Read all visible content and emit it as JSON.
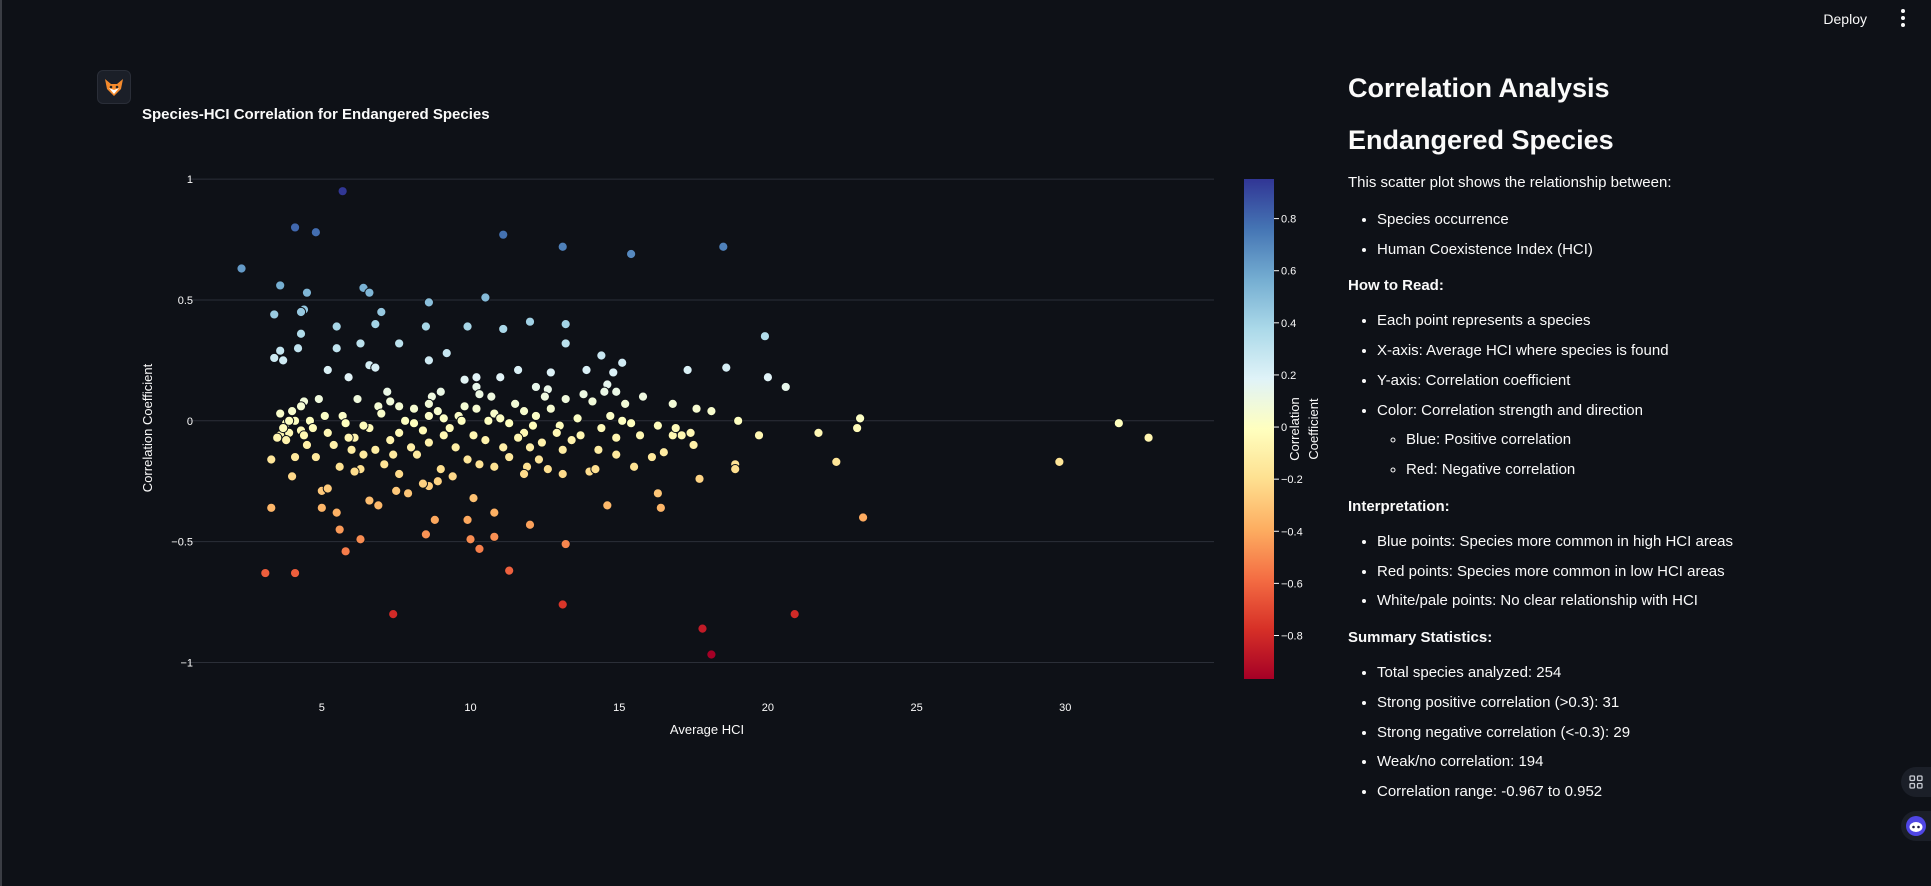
{
  "header": {
    "deploy_label": "Deploy",
    "menu_icon": "more-vertical-icon"
  },
  "chart_header": {
    "avatar_icon": "fox-icon",
    "title": "Species-HCI Correlation for Endangered Species"
  },
  "colors": {
    "background": "#0e1117",
    "grid": "#2b2f38",
    "text": "#fafafa"
  },
  "chart_data": {
    "type": "scatter",
    "title": "Species-HCI Correlation for Endangered Species",
    "xlabel": "Average HCI",
    "ylabel": "Correlation Coefficient",
    "xlim": [
      0.5,
      35
    ],
    "ylim": [
      -1.06,
      1.05
    ],
    "x_ticks": [
      5,
      10,
      15,
      20,
      25,
      30
    ],
    "y_ticks": [
      1,
      0.5,
      0,
      -0.5,
      -1
    ],
    "y_tick_labels": [
      "1",
      "0.5",
      "0",
      "−0.5",
      "−1"
    ],
    "grid": "horizontal",
    "colorbar": {
      "title": "Correlation Coefficient",
      "range": [
        -0.967,
        0.952
      ],
      "ticks": [
        0.8,
        0.6,
        0.4,
        0.2,
        0,
        -0.2,
        -0.4,
        -0.6,
        -0.8
      ],
      "tick_labels": [
        "0.8",
        "0.6",
        "0.4",
        "0.2",
        "0",
        "−0.2",
        "−0.4",
        "−0.6",
        "−0.8"
      ],
      "colorscale": "RdYlBu"
    },
    "points": [
      [
        5.7,
        0.95
      ],
      [
        4.1,
        0.8
      ],
      [
        4.8,
        0.78
      ],
      [
        11.1,
        0.77
      ],
      [
        13.1,
        0.72
      ],
      [
        18.5,
        0.72
      ],
      [
        15.4,
        0.69
      ],
      [
        2.3,
        0.63
      ],
      [
        3.6,
        0.56
      ],
      [
        6.4,
        0.55
      ],
      [
        6.6,
        0.53
      ],
      [
        4.5,
        0.53
      ],
      [
        10.5,
        0.51
      ],
      [
        8.6,
        0.49
      ],
      [
        4.4,
        0.46
      ],
      [
        3.4,
        0.44
      ],
      [
        7.0,
        0.45
      ],
      [
        4.3,
        0.45
      ],
      [
        12.0,
        0.41
      ],
      [
        13.2,
        0.4
      ],
      [
        6.8,
        0.4
      ],
      [
        9.9,
        0.39
      ],
      [
        5.5,
        0.39
      ],
      [
        8.5,
        0.39
      ],
      [
        11.1,
        0.38
      ],
      [
        4.3,
        0.36
      ],
      [
        19.9,
        0.35
      ],
      [
        6.3,
        0.32
      ],
      [
        13.2,
        0.32
      ],
      [
        7.6,
        0.32
      ],
      [
        3.6,
        0.29
      ],
      [
        5.5,
        0.3
      ],
      [
        4.2,
        0.3
      ],
      [
        9.2,
        0.28
      ],
      [
        3.4,
        0.26
      ],
      [
        8.6,
        0.25
      ],
      [
        14.4,
        0.27
      ],
      [
        15.1,
        0.24
      ],
      [
        3.7,
        0.25
      ],
      [
        5.2,
        0.21
      ],
      [
        6.6,
        0.23
      ],
      [
        6.8,
        0.22
      ],
      [
        12.7,
        0.2
      ],
      [
        11.6,
        0.21
      ],
      [
        17.3,
        0.21
      ],
      [
        18.6,
        0.22
      ],
      [
        10.2,
        0.18
      ],
      [
        14.8,
        0.2
      ],
      [
        20.0,
        0.18
      ],
      [
        9.8,
        0.17
      ],
      [
        13.9,
        0.21
      ],
      [
        12.2,
        0.14
      ],
      [
        5.9,
        0.18
      ],
      [
        11.0,
        0.18
      ],
      [
        14.6,
        0.15
      ],
      [
        10.2,
        0.14
      ],
      [
        20.6,
        0.14
      ],
      [
        7.2,
        0.12
      ],
      [
        9.0,
        0.12
      ],
      [
        10.7,
        0.1
      ],
      [
        12.6,
        0.13
      ],
      [
        8.7,
        0.1
      ],
      [
        4.9,
        0.09
      ],
      [
        14.9,
        0.12
      ],
      [
        6.2,
        0.09
      ],
      [
        14.5,
        0.12
      ],
      [
        10.3,
        0.11
      ],
      [
        12.5,
        0.1
      ],
      [
        13.8,
        0.11
      ],
      [
        7.3,
        0.08
      ],
      [
        8.6,
        0.07
      ],
      [
        11.5,
        0.07
      ],
      [
        15.8,
        0.1
      ],
      [
        4.4,
        0.08
      ],
      [
        4.3,
        0.06
      ],
      [
        6.9,
        0.06
      ],
      [
        16.8,
        0.07
      ],
      [
        15.2,
        0.07
      ],
      [
        9.8,
        0.06
      ],
      [
        13.2,
        0.09
      ],
      [
        7.6,
        0.06
      ],
      [
        10.2,
        0.05
      ],
      [
        8.9,
        0.04
      ],
      [
        12.7,
        0.05
      ],
      [
        4.0,
        0.04
      ],
      [
        3.6,
        0.03
      ],
      [
        5.7,
        0.02
      ],
      [
        11.8,
        0.04
      ],
      [
        18.1,
        0.04
      ],
      [
        23.1,
        0.01
      ],
      [
        7.0,
        0.03
      ],
      [
        8.6,
        0.02
      ],
      [
        14.7,
        0.02
      ],
      [
        9.6,
        0.02
      ],
      [
        4.1,
        0.0
      ],
      [
        3.8,
        -0.01
      ],
      [
        4.6,
        0.0
      ],
      [
        5.8,
        -0.01
      ],
      [
        10.6,
        0.0
      ],
      [
        11.3,
        -0.01
      ],
      [
        9.1,
        0.01
      ],
      [
        13.0,
        -0.02
      ],
      [
        17.6,
        0.05
      ],
      [
        16.3,
        -0.02
      ],
      [
        15.1,
        0.0
      ],
      [
        12.1,
        -0.02
      ],
      [
        6.6,
        -0.03
      ],
      [
        8.1,
        -0.01
      ],
      [
        14.4,
        -0.03
      ],
      [
        4.3,
        -0.04
      ],
      [
        3.9,
        -0.05
      ],
      [
        3.6,
        -0.06
      ],
      [
        5.2,
        -0.05
      ],
      [
        31.8,
        -0.01
      ],
      [
        23.0,
        -0.03
      ],
      [
        21.7,
        -0.05
      ],
      [
        19.7,
        -0.06
      ],
      [
        17.1,
        -0.06
      ],
      [
        16.8,
        -0.06
      ],
      [
        17.4,
        -0.05
      ],
      [
        7.6,
        -0.05
      ],
      [
        9.1,
        -0.06
      ],
      [
        10.1,
        -0.06
      ],
      [
        11.8,
        -0.05
      ],
      [
        12.9,
        -0.05
      ],
      [
        13.7,
        -0.06
      ],
      [
        15.7,
        -0.06
      ],
      [
        6.1,
        -0.07
      ],
      [
        7.3,
        -0.08
      ],
      [
        8.6,
        -0.09
      ],
      [
        10.5,
        -0.08
      ],
      [
        11.6,
        -0.07
      ],
      [
        14.9,
        -0.07
      ],
      [
        32.8,
        -0.07
      ],
      [
        4.5,
        -0.1
      ],
      [
        5.4,
        -0.1
      ],
      [
        6.8,
        -0.12
      ],
      [
        8.0,
        -0.11
      ],
      [
        9.5,
        -0.11
      ],
      [
        12.4,
        -0.09
      ],
      [
        13.1,
        -0.12
      ],
      [
        14.3,
        -0.12
      ],
      [
        17.5,
        -0.1
      ],
      [
        16.5,
        -0.13
      ],
      [
        3.3,
        -0.16
      ],
      [
        4.1,
        -0.15
      ],
      [
        4.8,
        -0.15
      ],
      [
        6.0,
        -0.12
      ],
      [
        7.4,
        -0.14
      ],
      [
        8.2,
        -0.14
      ],
      [
        9.9,
        -0.16
      ],
      [
        11.3,
        -0.15
      ],
      [
        12.3,
        -0.16
      ],
      [
        14.9,
        -0.14
      ],
      [
        16.1,
        -0.15
      ],
      [
        18.9,
        -0.18
      ],
      [
        22.3,
        -0.17
      ],
      [
        29.8,
        -0.17
      ],
      [
        5.6,
        -0.19
      ],
      [
        6.3,
        -0.2
      ],
      [
        7.1,
        -0.18
      ],
      [
        9.0,
        -0.2
      ],
      [
        10.3,
        -0.18
      ],
      [
        10.8,
        -0.19
      ],
      [
        11.9,
        -0.19
      ],
      [
        12.6,
        -0.2
      ],
      [
        14.0,
        -0.21
      ],
      [
        15.5,
        -0.19
      ],
      [
        18.9,
        -0.2
      ],
      [
        4.0,
        -0.23
      ],
      [
        6.1,
        -0.21
      ],
      [
        7.6,
        -0.22
      ],
      [
        8.9,
        -0.25
      ],
      [
        9.4,
        -0.23
      ],
      [
        11.8,
        -0.22
      ],
      [
        13.1,
        -0.22
      ],
      [
        14.2,
        -0.2
      ],
      [
        17.7,
        -0.24
      ],
      [
        8.6,
        -0.27
      ],
      [
        8.4,
        -0.26
      ],
      [
        5.0,
        -0.29
      ],
      [
        7.5,
        -0.29
      ],
      [
        5.2,
        -0.28
      ],
      [
        7.9,
        -0.3
      ],
      [
        16.3,
        -0.3
      ],
      [
        10.1,
        -0.32
      ],
      [
        6.6,
        -0.33
      ],
      [
        5.0,
        -0.36
      ],
      [
        6.9,
        -0.35
      ],
      [
        14.6,
        -0.35
      ],
      [
        16.4,
        -0.36
      ],
      [
        3.3,
        -0.36
      ],
      [
        5.5,
        -0.38
      ],
      [
        10.8,
        -0.38
      ],
      [
        8.8,
        -0.41
      ],
      [
        9.9,
        -0.41
      ],
      [
        23.2,
        -0.4
      ],
      [
        12.0,
        -0.43
      ],
      [
        5.6,
        -0.45
      ],
      [
        8.5,
        -0.47
      ],
      [
        10.0,
        -0.49
      ],
      [
        6.3,
        -0.49
      ],
      [
        10.8,
        -0.48
      ],
      [
        13.2,
        -0.51
      ],
      [
        10.3,
        -0.53
      ],
      [
        5.8,
        -0.54
      ],
      [
        3.1,
        -0.63
      ],
      [
        4.1,
        -0.63
      ],
      [
        11.3,
        -0.62
      ],
      [
        13.1,
        -0.76
      ],
      [
        7.4,
        -0.8
      ],
      [
        20.9,
        -0.8
      ],
      [
        17.8,
        -0.86
      ],
      [
        18.1,
        -0.967
      ],
      [
        3.9,
        0.0
      ],
      [
        4.7,
        -0.03
      ],
      [
        5.1,
        0.02
      ],
      [
        3.7,
        -0.03
      ],
      [
        3.5,
        -0.07
      ],
      [
        4.4,
        -0.06
      ],
      [
        6.4,
        -0.02
      ],
      [
        8.1,
        0.05
      ],
      [
        9.3,
        -0.03
      ],
      [
        10.8,
        0.03
      ],
      [
        11.1,
        -0.11
      ],
      [
        12.2,
        0.02
      ],
      [
        13.6,
        0.01
      ],
      [
        15.4,
        -0.01
      ],
      [
        16.9,
        -0.03
      ],
      [
        19.0,
        0.0
      ],
      [
        3.8,
        -0.08
      ],
      [
        5.9,
        -0.07
      ],
      [
        8.4,
        -0.04
      ],
      [
        9.7,
        0.0
      ],
      [
        11.0,
        0.01
      ],
      [
        13.4,
        -0.08
      ],
      [
        14.1,
        0.08
      ],
      [
        7.8,
        0.0
      ],
      [
        6.4,
        -0.14
      ],
      [
        12.0,
        -0.11
      ]
    ]
  },
  "panel": {
    "title": "Correlation Analysis",
    "subtitle": "Endangered Species",
    "intro": "This scatter plot shows the relationship between:",
    "intro_items": [
      "Species occurrence",
      "Human Coexistence Index (HCI)"
    ],
    "how_title": "How to Read:",
    "how_items": [
      "Each point represents a species",
      "X-axis: Average HCI where species is found",
      "Y-axis: Correlation coefficient",
      "Color: Correlation strength and direction"
    ],
    "how_subitems": [
      "Blue: Positive correlation",
      "Red: Negative correlation"
    ],
    "interp_title": "Interpretation:",
    "interp_items": [
      "Blue points: Species more common in high HCI areas",
      "Red points: Species more common in low HCI areas",
      "White/pale points: No clear relationship with HCI"
    ],
    "summary_title": "Summary Statistics:",
    "summary_items": [
      "Total species analyzed: 254",
      "Strong positive correlation (>0.3): 31",
      "Strong negative correlation (<-0.3): 29",
      "Weak/no correlation: 194",
      "Correlation range: -0.967 to 0.952"
    ]
  },
  "floating": {
    "apps_icon": "apps-grid-icon",
    "assistant_icon": "assistant-face-icon"
  }
}
